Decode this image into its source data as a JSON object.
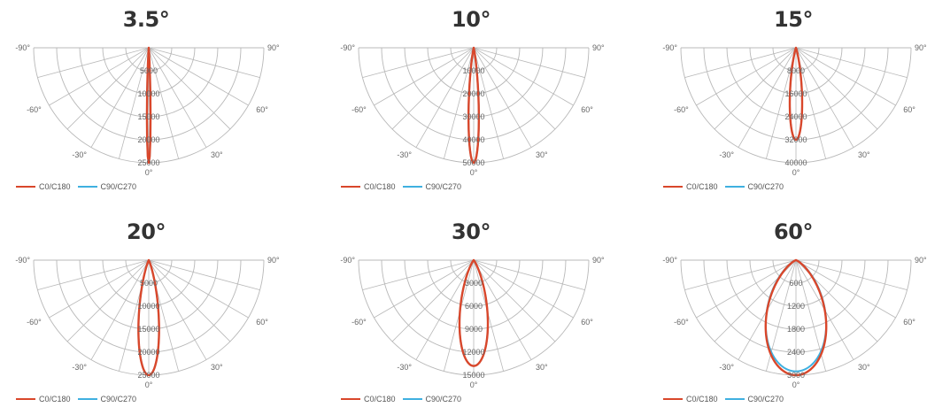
{
  "legend": {
    "c0": "C0/C180",
    "c90": "C90/C270",
    "c0_color": "#d9472b",
    "c90_color": "#3fb0e0"
  },
  "chart_data": [
    {
      "type": "polar",
      "title": "3.5°",
      "angle_labels": [
        "-90°",
        "-60°",
        "-30°",
        "0°",
        "30°",
        "60°",
        "90°"
      ],
      "radial_labels": [
        "5000",
        "10000",
        "15000",
        "20000",
        "25000"
      ],
      "rmax": 25000,
      "series": [
        {
          "name": "C0/C180",
          "beam_angle": 3.5,
          "peak": 25000
        },
        {
          "name": "C90/C270",
          "beam_angle": 3.5,
          "peak": 25000
        }
      ]
    },
    {
      "type": "polar",
      "title": "10°",
      "angle_labels": [
        "-90°",
        "-60°",
        "-30°",
        "0°",
        "30°",
        "60°",
        "90°"
      ],
      "radial_labels": [
        "10000",
        "20000",
        "30000",
        "40000",
        "50000"
      ],
      "rmax": 50000,
      "series": [
        {
          "name": "C0/C180",
          "beam_angle": 10,
          "peak": 50000
        },
        {
          "name": "C90/C270",
          "beam_angle": 10,
          "peak": 50000
        }
      ]
    },
    {
      "type": "polar",
      "title": "15°",
      "angle_labels": [
        "-90°",
        "-60°",
        "-30°",
        "0°",
        "30°",
        "60°",
        "90°"
      ],
      "radial_labels": [
        "8000",
        "16000",
        "24000",
        "32000",
        "40000"
      ],
      "rmax": 40000,
      "series": [
        {
          "name": "C0/C180",
          "beam_angle": 15,
          "peak": 32000
        },
        {
          "name": "C90/C270",
          "beam_angle": 15,
          "peak": 32000
        }
      ]
    },
    {
      "type": "polar",
      "title": "20°",
      "angle_labels": [
        "-90°",
        "-60°",
        "-30°",
        "0°",
        "30°",
        "60°",
        "90°"
      ],
      "radial_labels": [
        "5000",
        "10000",
        "15000",
        "20000",
        "25000"
      ],
      "rmax": 25000,
      "series": [
        {
          "name": "C0/C180",
          "beam_angle": 20,
          "peak": 25000
        },
        {
          "name": "C90/C270",
          "beam_angle": 20,
          "peak": 25000
        }
      ]
    },
    {
      "type": "polar",
      "title": "30°",
      "angle_labels": [
        "-90°",
        "-60°",
        "-30°",
        "0°",
        "30°",
        "60°",
        "90°"
      ],
      "radial_labels": [
        "3000",
        "6000",
        "9000",
        "12000",
        "15000"
      ],
      "rmax": 15000,
      "series": [
        {
          "name": "C0/C180",
          "beam_angle": 30,
          "peak": 13800
        },
        {
          "name": "C90/C270",
          "beam_angle": 30,
          "peak": 13800
        }
      ]
    },
    {
      "type": "polar",
      "title": "60°",
      "angle_labels": [
        "-90°",
        "-60°",
        "-30°",
        "0°",
        "30°",
        "60°",
        "90°"
      ],
      "radial_labels": [
        "600",
        "1200",
        "1800",
        "2400",
        "3000"
      ],
      "rmax": 3000,
      "series": [
        {
          "name": "C0/C180",
          "beam_angle": 60,
          "peak": 3000
        },
        {
          "name": "C90/C270",
          "beam_angle": 62,
          "peak": 2900
        }
      ]
    }
  ]
}
